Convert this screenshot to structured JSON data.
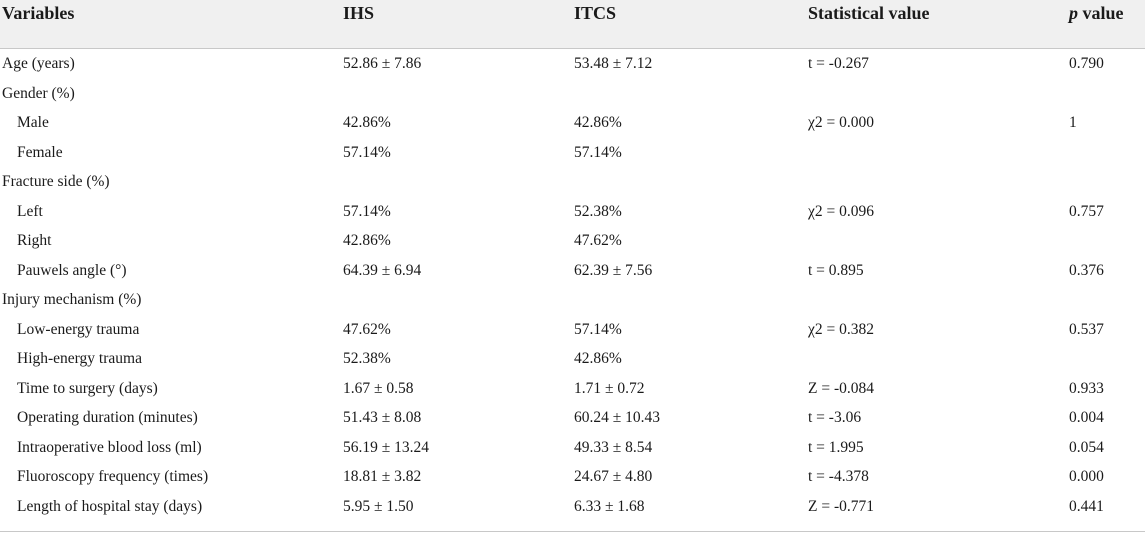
{
  "header": {
    "col0": "Variables",
    "col1": "IHS",
    "col2": "ITCS",
    "col3": "Statistical value",
    "col4_p": "p",
    "col4_rest": " value"
  },
  "rows": [
    {
      "label": "Age (years)",
      "ihs": "52.86 ± 7.86",
      "itcs": "53.48 ± 7.12",
      "stat": "t = -0.267",
      "p": "0.790",
      "sub": false
    },
    {
      "label": "Gender (%)",
      "ihs": "",
      "itcs": "",
      "stat": "",
      "p": "",
      "sub": false
    },
    {
      "label": "Male",
      "ihs": "42.86%",
      "itcs": "42.86%",
      "stat": "χ2 = 0.000",
      "p": "1",
      "sub": true
    },
    {
      "label": "Female",
      "ihs": "57.14%",
      "itcs": "57.14%",
      "stat": "",
      "p": "",
      "sub": true
    },
    {
      "label": "Fracture side (%)",
      "ihs": "",
      "itcs": "",
      "stat": "",
      "p": "",
      "sub": false
    },
    {
      "label": "Left",
      "ihs": "57.14%",
      "itcs": "52.38%",
      "stat": "χ2 = 0.096",
      "p": "0.757",
      "sub": true
    },
    {
      "label": "Right",
      "ihs": "42.86%",
      "itcs": "47.62%",
      "stat": "",
      "p": "",
      "sub": true
    },
    {
      "label": "Pauwels angle (°)",
      "ihs": "64.39 ± 6.94",
      "itcs": "62.39 ± 7.56",
      "stat": "t = 0.895",
      "p": "0.376",
      "sub": true
    },
    {
      "label": "Injury mechanism (%)",
      "ihs": "",
      "itcs": "",
      "stat": "",
      "p": "",
      "sub": false
    },
    {
      "label": "Low-energy trauma",
      "ihs": "47.62%",
      "itcs": "57.14%",
      "stat": "χ2 = 0.382",
      "p": "0.537",
      "sub": true
    },
    {
      "label": "High-energy trauma",
      "ihs": "52.38%",
      "itcs": "42.86%",
      "stat": "",
      "p": "",
      "sub": true
    },
    {
      "label": "Time to surgery (days)",
      "ihs": "1.67 ± 0.58",
      "itcs": "1.71 ± 0.72",
      "stat": "Z = -0.084",
      "p": "0.933",
      "sub": true
    },
    {
      "label": "Operating duration (minutes)",
      "ihs": "51.43 ± 8.08",
      "itcs": "60.24 ± 10.43",
      "stat": "t = -3.06",
      "p": "0.004",
      "sub": true
    },
    {
      "label": "Intraoperative blood loss (ml)",
      "ihs": "56.19 ± 13.24",
      "itcs": "49.33 ± 8.54",
      "stat": "t = 1.995",
      "p": "0.054",
      "sub": true
    },
    {
      "label": "Fluoroscopy frequency (times)",
      "ihs": "18.81 ± 3.82",
      "itcs": "24.67 ± 4.80",
      "stat": "t = -4.378",
      "p": "0.000",
      "sub": true
    },
    {
      "label": "Length of hospital stay (days)",
      "ihs": "5.95 ± 1.50",
      "itcs": "6.33 ± 1.68",
      "stat": "Z = -0.771",
      "p": "0.441",
      "sub": true
    }
  ]
}
